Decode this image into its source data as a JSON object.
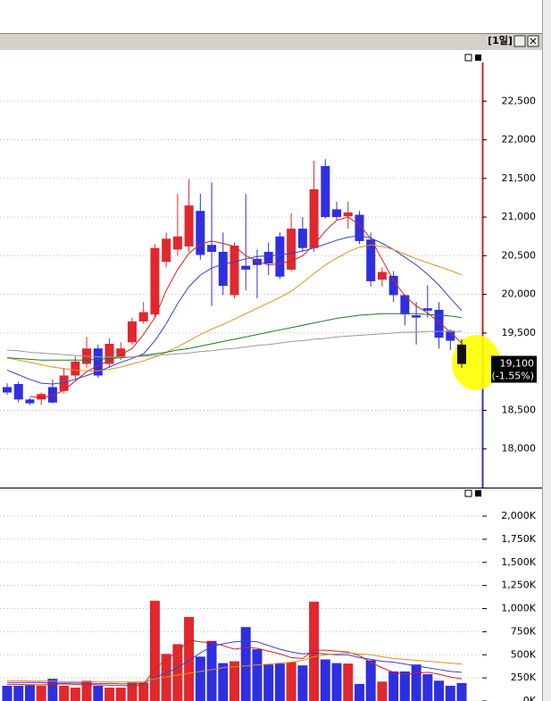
{
  "toolbar": {
    "period": "[1일]"
  },
  "chart_data": [
    {
      "type": "candlestick",
      "open": [
        18800,
        18840,
        18640,
        18640,
        18800,
        18750,
        18950,
        19100,
        19300,
        19100,
        19190,
        19380,
        19650,
        19740,
        20420,
        20580,
        20620,
        21080,
        20640,
        20550,
        19990,
        20370,
        20460,
        20550,
        20750,
        20320,
        20850,
        20600,
        21660,
        21100,
        21010,
        21030,
        20710,
        20190,
        20240,
        19990,
        19730,
        19820,
        19800,
        19530,
        19350
      ],
      "high": [
        18850,
        18870,
        18660,
        18730,
        18900,
        19050,
        19200,
        19450,
        19350,
        19430,
        19380,
        19700,
        19900,
        20650,
        20800,
        21300,
        21490,
        21300,
        21450,
        20800,
        20670,
        21300,
        20580,
        20670,
        20800,
        21050,
        21000,
        21730,
        21750,
        21200,
        21200,
        21080,
        20800,
        20350,
        20300,
        20000,
        19900,
        20120,
        19900,
        19550,
        19420
      ],
      "low": [
        18700,
        18600,
        18570,
        18570,
        18590,
        18720,
        18900,
        19050,
        18920,
        19050,
        19150,
        19350,
        19620,
        19700,
        20350,
        20500,
        20550,
        20450,
        19850,
        19990,
        19950,
        20050,
        19950,
        20250,
        20200,
        20300,
        20550,
        20550,
        20980,
        20950,
        20850,
        20650,
        20100,
        20100,
        19900,
        19600,
        19350,
        19700,
        19300,
        19280,
        19050
      ],
      "close": [
        18730,
        18640,
        18590,
        18710,
        18600,
        18950,
        19130,
        19300,
        18950,
        19360,
        19300,
        19650,
        19770,
        20600,
        20720,
        20750,
        21150,
        20510,
        20550,
        20110,
        20630,
        20320,
        20380,
        20400,
        20230,
        20850,
        20600,
        21360,
        21000,
        21000,
        21060,
        20690,
        20170,
        20290,
        19990,
        19740,
        19700,
        19790,
        19440,
        19400,
        19100
      ],
      "up_color": "#e0282e",
      "down_color": "#2f2fe0",
      "last_color": "#111111",
      "ylim": [
        17500,
        23150
      ],
      "yticks": [
        {
          "value": 18000,
          "label": "18,000"
        },
        {
          "value": 18500,
          "label": "18,500"
        },
        {
          "value": 19500,
          "label": "19,500"
        },
        {
          "value": 20000,
          "label": "20,000"
        },
        {
          "value": 20500,
          "label": "20,500"
        },
        {
          "value": 21000,
          "label": "21,000"
        },
        {
          "value": 21500,
          "label": "21,500"
        },
        {
          "value": 22000,
          "label": "22,000"
        },
        {
          "value": 22500,
          "label": "22,500"
        }
      ],
      "grid": true,
      "moving_averages": [
        {
          "color": "#d42020",
          "values": [
            null,
            null,
            18680,
            18660,
            18690,
            18760,
            18880,
            19000,
            19080,
            19140,
            19220,
            19300,
            19480,
            19700,
            20050,
            20320,
            20530,
            20650,
            20690,
            20660,
            20620,
            20500,
            20430,
            20380,
            20400,
            20430,
            20500,
            20640,
            20820,
            20960,
            21000,
            20900,
            20720,
            20450,
            20180,
            19980,
            19850,
            19760,
            19640,
            19510,
            19370
          ]
        },
        {
          "color": "#3a3ae0",
          "values": [
            19020,
            18960,
            18900,
            18850,
            18840,
            18860,
            18900,
            18950,
            19000,
            19060,
            19120,
            19170,
            19230,
            19400,
            19620,
            19880,
            20100,
            20250,
            20340,
            20390,
            20420,
            20460,
            20490,
            20500,
            20510,
            20530,
            20560,
            20600,
            20650,
            20700,
            20740,
            20760,
            20730,
            20660,
            20580,
            20480,
            20380,
            20260,
            20120,
            19950,
            19790
          ]
        },
        {
          "color": "#e0901a",
          "values": [
            19180,
            19150,
            19120,
            19090,
            19060,
            19040,
            19020,
            19010,
            19010,
            19030,
            19060,
            19100,
            19140,
            19190,
            19250,
            19320,
            19400,
            19480,
            19550,
            19610,
            19680,
            19750,
            19820,
            19890,
            19960,
            20040,
            20150,
            20270,
            20380,
            20470,
            20550,
            20610,
            20640,
            20620,
            20580,
            20520,
            20460,
            20410,
            20360,
            20310,
            20250
          ]
        },
        {
          "color": "#1e7a1e",
          "values": [
            19180,
            19170,
            19160,
            19150,
            19150,
            19150,
            19150,
            19150,
            19160,
            19170,
            19180,
            19190,
            19210,
            19230,
            19250,
            19280,
            19300,
            19330,
            19360,
            19390,
            19420,
            19450,
            19480,
            19510,
            19540,
            19570,
            19600,
            19630,
            19660,
            19690,
            19710,
            19730,
            19740,
            19750,
            19750,
            19750,
            19750,
            19740,
            19730,
            19720,
            19700
          ]
        },
        {
          "color": "#9a9a9a",
          "values": [
            19280,
            19270,
            19250,
            19240,
            19230,
            19220,
            19210,
            19200,
            19190,
            19190,
            19190,
            19190,
            19200,
            19210,
            19220,
            19230,
            19240,
            19260,
            19270,
            19290,
            19300,
            19320,
            19340,
            19350,
            19370,
            19390,
            19400,
            19420,
            19430,
            19450,
            19460,
            19470,
            19480,
            19490,
            19500,
            19510,
            19510,
            19520,
            19520,
            19520,
            19520
          ]
        }
      ],
      "current_price": {
        "value": 19100,
        "label": "19,100"
      },
      "change_label": "(-1.55%)"
    },
    {
      "type": "bar",
      "values": [
        165000,
        165000,
        170000,
        165000,
        240000,
        165000,
        145000,
        220000,
        165000,
        145000,
        145000,
        200000,
        200000,
        1085000,
        510000,
        615000,
        910000,
        480000,
        650000,
        410000,
        430000,
        800000,
        560000,
        395000,
        405000,
        420000,
        385000,
        1075000,
        450000,
        410000,
        405000,
        185000,
        440000,
        210000,
        320000,
        320000,
        395000,
        290000,
        220000,
        165000,
        195000
      ],
      "up_color": "#e0282e",
      "down_color": "#2f2fe0",
      "ylim": [
        0,
        2290000
      ],
      "yticks": [
        {
          "value": 0,
          "label": "0K"
        },
        {
          "value": 250000,
          "label": "250K"
        },
        {
          "value": 500000,
          "label": "500K"
        },
        {
          "value": 750000,
          "label": "750K"
        },
        {
          "value": 1000000,
          "label": "1,000K"
        },
        {
          "value": 1250000,
          "label": "1,250K"
        },
        {
          "value": 1500000,
          "label": "1,500K"
        },
        {
          "value": 1750000,
          "label": "1,750K"
        },
        {
          "value": 2000000,
          "label": "2,000K"
        }
      ],
      "grid": true,
      "moving_averages": [
        {
          "color": "#d42020",
          "values": [
            180000,
            180000,
            175000,
            175000,
            180000,
            185000,
            180000,
            180000,
            175000,
            170000,
            165000,
            165000,
            175000,
            350000,
            450000,
            530000,
            660000,
            640000,
            630000,
            600000,
            560000,
            580000,
            570000,
            540000,
            510000,
            470000,
            460000,
            550000,
            550000,
            540000,
            530000,
            490000,
            420000,
            360000,
            310000,
            290000,
            300000,
            310000,
            290000,
            260000,
            240000
          ]
        },
        {
          "color": "#3a3ae0",
          "values": [
            200000,
            200000,
            200000,
            200000,
            195000,
            195000,
            195000,
            195000,
            190000,
            190000,
            185000,
            185000,
            190000,
            260000,
            300000,
            360000,
            440000,
            520000,
            590000,
            620000,
            640000,
            650000,
            640000,
            600000,
            560000,
            530000,
            510000,
            520000,
            510000,
            500000,
            500000,
            470000,
            450000,
            430000,
            420000,
            400000,
            380000,
            360000,
            340000,
            320000,
            310000
          ]
        },
        {
          "color": "#e0901a",
          "values": [
            220000,
            220000,
            215000,
            215000,
            215000,
            210000,
            210000,
            210000,
            210000,
            205000,
            205000,
            205000,
            210000,
            240000,
            260000,
            280000,
            300000,
            320000,
            340000,
            360000,
            370000,
            380000,
            390000,
            400000,
            410000,
            420000,
            440000,
            480000,
            500000,
            510000,
            520000,
            510000,
            500000,
            480000,
            460000,
            450000,
            440000,
            430000,
            420000,
            410000,
            400000
          ]
        }
      ]
    }
  ]
}
